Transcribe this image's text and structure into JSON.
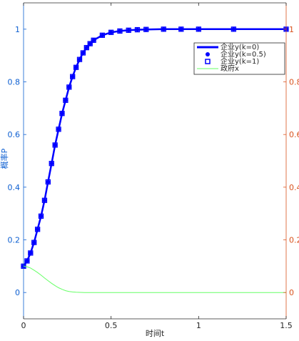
{
  "chart_data": {
    "type": "line",
    "xlabel": "时间t",
    "ylabel_left": "概率P",
    "ylabel_right": "",
    "xlim": [
      0,
      1.5
    ],
    "ylim_left": [
      -0.1,
      1.1
    ],
    "ylim_right": [
      -0.1,
      1.1
    ],
    "x_ticks": [
      0,
      0.5,
      1,
      1.5
    ],
    "x_tick_labels": [
      "0",
      "0.5",
      "1",
      "1.5"
    ],
    "y_left_ticks": [
      0,
      0.2,
      0.4,
      0.6,
      0.8,
      1
    ],
    "y_left_tick_labels": [
      "0",
      "0.2",
      "0.4",
      "0.6",
      "0.8",
      "1"
    ],
    "y_right_ticks": [
      0,
      0.2,
      0.4,
      0.6,
      0.8,
      1
    ],
    "y_right_tick_labels": [
      "0",
      "0.2",
      "0.4",
      "0.6",
      "0.8",
      "1"
    ],
    "grid": false,
    "legend_position": "top-right",
    "colors": {
      "left_axis": "#0d5fd1",
      "right_axis": "#d9531e",
      "enterprise": "#0000ff",
      "government": "#66ff66",
      "frame": "#262626"
    },
    "series": [
      {
        "name": "企业y(k=0)",
        "style": "line",
        "x": [
          0,
          0.02,
          0.04,
          0.06,
          0.08,
          0.1,
          0.12,
          0.14,
          0.16,
          0.18,
          0.2,
          0.22,
          0.24,
          0.26,
          0.28,
          0.3,
          0.32,
          0.34,
          0.36,
          0.38,
          0.4,
          0.45,
          0.5,
          0.55,
          0.6,
          0.65,
          0.7,
          0.8,
          0.9,
          1.0,
          1.2,
          1.5
        ],
        "values": [
          0.1,
          0.12,
          0.15,
          0.19,
          0.24,
          0.29,
          0.35,
          0.42,
          0.49,
          0.56,
          0.62,
          0.68,
          0.73,
          0.78,
          0.82,
          0.855,
          0.885,
          0.91,
          0.93,
          0.945,
          0.958,
          0.977,
          0.988,
          0.993,
          0.996,
          0.998,
          0.999,
          1.0,
          1.0,
          1.0,
          1.0,
          1.0
        ]
      },
      {
        "name": "企业y(k=0.5)",
        "style": "dot",
        "x": [
          0,
          0.02,
          0.04,
          0.06,
          0.08,
          0.1,
          0.12,
          0.14,
          0.16,
          0.18,
          0.2,
          0.22,
          0.24,
          0.26,
          0.28,
          0.3,
          0.32,
          0.34,
          0.36,
          0.38,
          0.4,
          0.45,
          0.5,
          0.55,
          0.6,
          0.65,
          0.7,
          0.8,
          0.9,
          1.0,
          1.2,
          1.5
        ],
        "values": [
          0.1,
          0.12,
          0.15,
          0.19,
          0.24,
          0.29,
          0.35,
          0.42,
          0.49,
          0.56,
          0.62,
          0.68,
          0.73,
          0.78,
          0.82,
          0.855,
          0.885,
          0.91,
          0.93,
          0.945,
          0.958,
          0.977,
          0.988,
          0.993,
          0.996,
          0.998,
          0.999,
          1.0,
          1.0,
          1.0,
          1.0,
          1.0
        ]
      },
      {
        "name": "企业y(k=1)",
        "style": "square",
        "x": [
          0,
          0.02,
          0.04,
          0.06,
          0.08,
          0.1,
          0.12,
          0.14,
          0.16,
          0.18,
          0.2,
          0.22,
          0.24,
          0.26,
          0.28,
          0.3,
          0.32,
          0.34,
          0.36,
          0.38,
          0.4,
          0.45,
          0.5,
          0.55,
          0.6,
          0.65,
          0.7,
          0.8,
          0.9,
          1.0,
          1.2,
          1.5
        ],
        "values": [
          0.1,
          0.12,
          0.15,
          0.19,
          0.24,
          0.29,
          0.35,
          0.42,
          0.49,
          0.56,
          0.62,
          0.68,
          0.73,
          0.78,
          0.82,
          0.855,
          0.885,
          0.91,
          0.93,
          0.945,
          0.958,
          0.977,
          0.988,
          0.993,
          0.996,
          0.998,
          0.999,
          1.0,
          1.0,
          1.0,
          1.0,
          1.0
        ]
      },
      {
        "name": "政府x",
        "style": "thin-line",
        "x": [
          0,
          0.02,
          0.04,
          0.06,
          0.08,
          0.1,
          0.12,
          0.14,
          0.16,
          0.18,
          0.2,
          0.22,
          0.24,
          0.26,
          0.28,
          0.3,
          0.35,
          0.4,
          0.5,
          0.7,
          1.0,
          1.5
        ],
        "values": [
          0.1,
          0.098,
          0.093,
          0.085,
          0.076,
          0.066,
          0.055,
          0.045,
          0.035,
          0.026,
          0.018,
          0.012,
          0.007,
          0.004,
          0.002,
          0.001,
          0.0,
          0.0,
          0.0,
          0.0,
          0.0,
          0.0
        ]
      }
    ]
  }
}
